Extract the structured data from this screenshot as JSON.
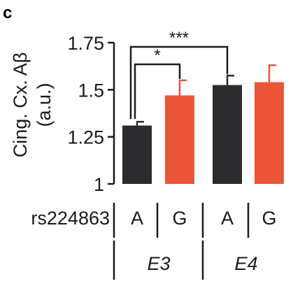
{
  "panel_label": "c",
  "chart_data": {
    "type": "bar",
    "ylabel_lines": [
      "Cing. Cx. Aβ",
      "(a.u.)"
    ],
    "ylim": [
      1,
      1.75
    ],
    "yticks": [
      {
        "value": 1,
        "label": "1"
      },
      {
        "value": 1.25,
        "label": "1.25"
      },
      {
        "value": 1.5,
        "label": "1.5"
      },
      {
        "value": 1.75,
        "label": "1.75"
      }
    ],
    "row_label": "rs224863",
    "groups": [
      "E3",
      "E4"
    ],
    "bars": [
      {
        "allele": "A",
        "group": "E3",
        "value": 1.31,
        "error": 0.02,
        "color": "#2b2b2d"
      },
      {
        "allele": "G",
        "group": "E3",
        "value": 1.47,
        "error": 0.08,
        "color": "#ea553a"
      },
      {
        "allele": "A",
        "group": "E4",
        "value": 1.525,
        "error": 0.05,
        "color": "#2b2b2d"
      },
      {
        "allele": "G",
        "group": "E4",
        "value": 1.54,
        "error": 0.09,
        "color": "#ea553a"
      }
    ],
    "significance": [
      {
        "from": 0,
        "to": 1,
        "label": "*"
      },
      {
        "from": 0,
        "to": 2,
        "label": "***"
      }
    ],
    "grid": false
  }
}
